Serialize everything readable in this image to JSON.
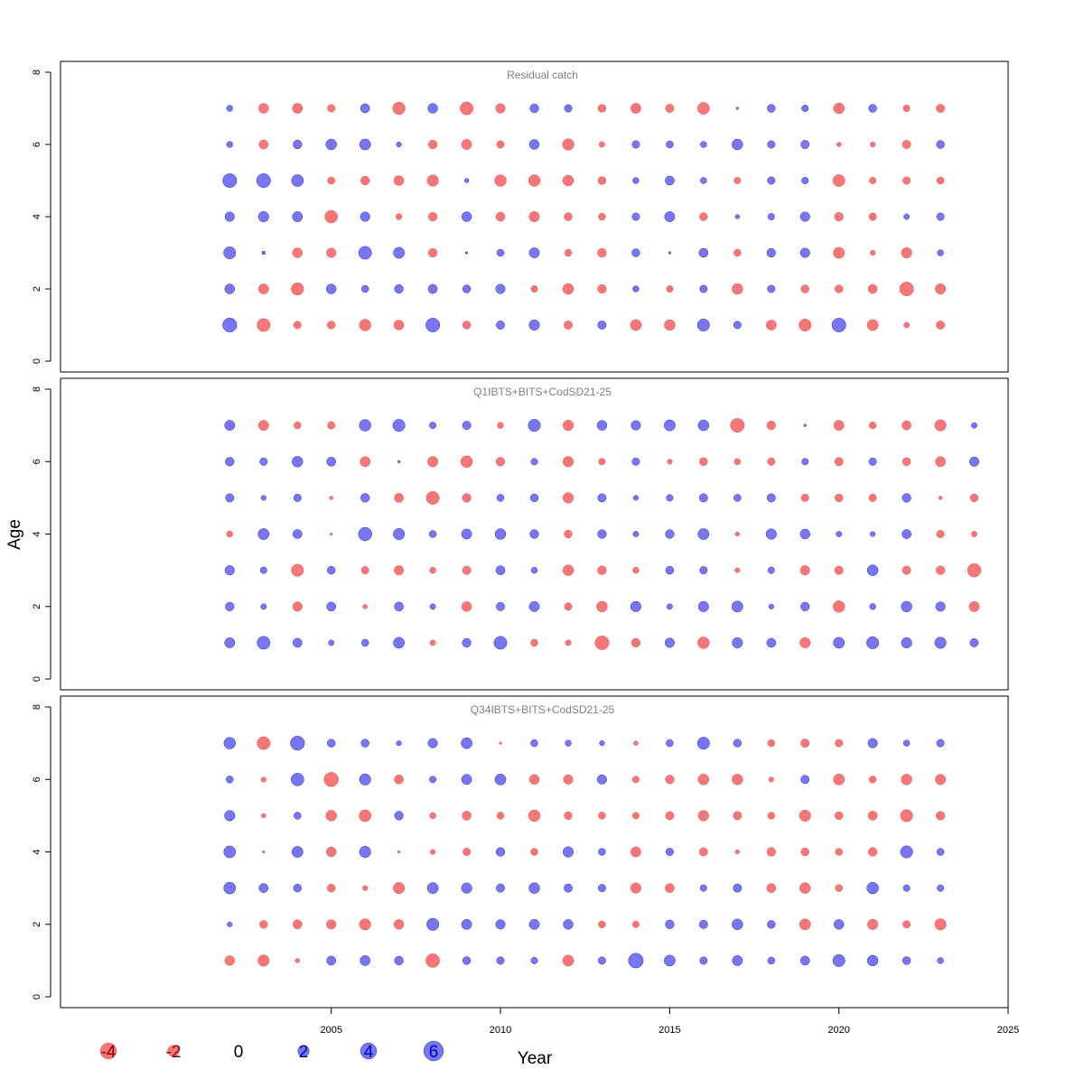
{
  "chart_data": {
    "type": "scatter",
    "style": "bubble",
    "xlabel": "Year",
    "ylabel": "Age",
    "xlim": [
      1997,
      2025
    ],
    "ylim": [
      0,
      8
    ],
    "x_ticks": [
      2005,
      2010,
      2015,
      2020,
      2025
    ],
    "y_ticks": [
      0,
      2,
      4,
      6,
      8
    ],
    "grid": false,
    "colors": {
      "positive": "#7777f5",
      "negative": "#f77777",
      "positive_text": "#0000b0",
      "negative_text": "#8b0000"
    },
    "legend": {
      "placement": "bottom",
      "items": [
        {
          "label": "-4",
          "value": -4
        },
        {
          "label": "-2",
          "value": -2
        },
        {
          "label": "0",
          "value": 0
        },
        {
          "label": "2",
          "value": 2
        },
        {
          "label": "4",
          "value": 4
        },
        {
          "label": "6",
          "value": 6
        }
      ]
    },
    "panels": [
      {
        "title": "Residual catch",
        "years": [
          2002,
          2003,
          2004,
          2005,
          2006,
          2007,
          2008,
          2009,
          2010,
          2011,
          2012,
          2013,
          2014,
          2015,
          2016,
          2017,
          2018,
          2019,
          2020,
          2021,
          2022,
          2023
        ],
        "ages": [
          7,
          6,
          5,
          4,
          3,
          2,
          1
        ],
        "residuals": [
          [
            0.6,
            -1.5,
            -1.6,
            -0.9,
            1.3,
            -2.4,
            1.5,
            -2.6,
            -1.4,
            1.2,
            0.9,
            -1.0,
            -1.6,
            -1.1,
            -2.2,
            0.1,
            1.0,
            0.7,
            -1.8,
            1.0,
            -0.7,
            -1.1
          ],
          [
            0.6,
            -1.3,
            1.2,
            1.8,
            1.9,
            0.4,
            -1.2,
            -1.6,
            -0.9,
            1.5,
            -2.0,
            -0.5,
            0.9,
            0.8,
            0.6,
            1.8,
            0.9,
            1.1,
            -0.3,
            -0.4,
            -1.1,
            1.0
          ],
          [
            3.0,
            3.0,
            2.2,
            -0.8,
            -1.2,
            -1.5,
            -2.0,
            0.3,
            -2.1,
            -2.1,
            -1.8,
            -1.0,
            0.6,
            1.3,
            0.6,
            -0.7,
            0.9,
            0.7,
            -2.2,
            -0.7,
            -0.9,
            -0.8
          ],
          [
            1.4,
            1.7,
            1.6,
            -2.5,
            1.4,
            -0.6,
            -1.2,
            1.5,
            -1.3,
            -1.7,
            -1.0,
            -0.8,
            0.9,
            1.6,
            -1.0,
            0.3,
            0.7,
            1.4,
            -1.2,
            -0.9,
            0.5,
            0.9
          ],
          [
            2.3,
            0.2,
            -1.5,
            -1.4,
            2.6,
            1.9,
            -1.2,
            0.1,
            0.8,
            1.6,
            -0.8,
            -1.2,
            1.0,
            0.1,
            1.3,
            -0.8,
            1.2,
            1.4,
            -1.9,
            -0.4,
            -1.7,
            0.6
          ],
          [
            1.5,
            -1.6,
            -2.4,
            1.5,
            0.8,
            1.2,
            1.3,
            1.0,
            1.4,
            -0.7,
            -1.8,
            -1.2,
            0.6,
            -0.7,
            0.9,
            -1.8,
            0.9,
            -1.0,
            -1.0,
            -1.3,
            -3.0,
            -1.7
          ],
          [
            3.1,
            -2.6,
            -0.9,
            -1.0,
            -2.1,
            -1.5,
            3.0,
            -1.0,
            1.1,
            1.7,
            -1.1,
            1.1,
            -1.9,
            -1.8,
            2.3,
            0.9,
            -1.6,
            -2.3,
            3.0,
            -1.9,
            -0.5,
            -1.1
          ]
        ]
      },
      {
        "title": "Q1IBTS+BITS+CodSD21-25",
        "years": [
          2002,
          2003,
          2004,
          2005,
          2006,
          2007,
          2008,
          2009,
          2010,
          2011,
          2012,
          2013,
          2014,
          2015,
          2016,
          2017,
          2018,
          2019,
          2020,
          2021,
          2022,
          2023,
          2024
        ],
        "ages": [
          7,
          6,
          5,
          4,
          3,
          2,
          1
        ],
        "residuals": [
          [
            1.6,
            -1.6,
            -0.8,
            -0.9,
            2.1,
            2.3,
            0.7,
            1.1,
            -0.6,
            2.3,
            -1.7,
            1.5,
            1.4,
            1.9,
            1.8,
            -3.0,
            -1.2,
            0.1,
            -1.6,
            -0.8,
            -1.3,
            -2.0,
            0.5
          ],
          [
            1.2,
            0.9,
            1.8,
            1.3,
            -1.6,
            0.1,
            -1.7,
            -2.1,
            -1.2,
            0.7,
            -1.7,
            -0.7,
            0.9,
            -0.4,
            -1.0,
            -0.6,
            -0.9,
            0.7,
            -1.1,
            0.9,
            -1.0,
            -1.6,
            1.4
          ],
          [
            1.1,
            0.4,
            0.9,
            -0.2,
            1.2,
            -1.3,
            -2.6,
            -1.2,
            0.8,
            1.0,
            -1.7,
            1.1,
            0.4,
            0.7,
            1.1,
            0.8,
            1.1,
            -0.9,
            -1.0,
            -0.9,
            1.2,
            -0.2,
            -1.0
          ],
          [
            -0.6,
            1.9,
            1.3,
            -0.1,
            2.8,
            2.0,
            0.8,
            1.6,
            1.8,
            1.2,
            -1.0,
            1.2,
            0.5,
            1.2,
            1.9,
            -0.3,
            1.7,
            1.5,
            0.5,
            0.4,
            1.3,
            -0.9,
            -0.5
          ],
          [
            1.4,
            0.7,
            -2.3,
            1.0,
            -0.9,
            -1.4,
            -0.6,
            -1.1,
            1.3,
            0.6,
            -1.8,
            -1.2,
            -0.6,
            1.0,
            0.9,
            -0.4,
            0.7,
            -1.4,
            -1.1,
            1.8,
            -1.1,
            -1.2,
            -2.8
          ],
          [
            1.2,
            0.5,
            -1.4,
            1.3,
            -0.3,
            1.3,
            0.5,
            -1.5,
            1.1,
            1.6,
            -0.9,
            -1.8,
            1.7,
            0.5,
            1.7,
            1.9,
            0.4,
            1.2,
            -2.1,
            0.6,
            1.8,
            1.4,
            -1.6
          ],
          [
            1.6,
            2.6,
            1.3,
            0.5,
            0.8,
            1.9,
            -0.5,
            1.2,
            2.6,
            -0.8,
            -0.5,
            -3.0,
            -1.2,
            1.4,
            -2.1,
            1.7,
            1.3,
            -1.7,
            1.9,
            2.3,
            1.7,
            2.0,
            1.1
          ]
        ]
      },
      {
        "title": "Q34IBTS+BITS+CodSD21-25",
        "years": [
          2002,
          2003,
          2004,
          2005,
          2006,
          2007,
          2008,
          2009,
          2010,
          2011,
          2012,
          2013,
          2014,
          2015,
          2016,
          2017,
          2018,
          2019,
          2020,
          2021,
          2022,
          2023
        ],
        "ages": [
          7,
          6,
          5,
          4,
          3,
          2,
          1
        ],
        "residuals": [
          [
            2.1,
            -2.6,
            3.1,
            1.0,
            1.0,
            0.4,
            1.4,
            1.9,
            -0.1,
            0.8,
            0.6,
            0.4,
            -0.3,
            0.8,
            2.3,
            1.0,
            -0.8,
            -1.1,
            -0.9,
            1.4,
            0.6,
            0.9
          ],
          [
            0.8,
            -0.4,
            2.5,
            -3.2,
            2.0,
            -1.3,
            0.7,
            1.6,
            1.9,
            -1.5,
            -1.4,
            1.4,
            -0.7,
            -1.2,
            -1.8,
            -1.8,
            -0.4,
            1.1,
            -1.9,
            -0.8,
            -1.8,
            -1.7
          ],
          [
            1.7,
            -0.3,
            0.8,
            -1.8,
            -2.2,
            1.2,
            -0.6,
            -1.3,
            -0.8,
            -2.1,
            -1.0,
            -0.8,
            -0.7,
            -1.1,
            -1.7,
            -1.1,
            -0.8,
            -2.0,
            -1.0,
            -1.3,
            -2.3,
            -1.2
          ],
          [
            2.2,
            -0.1,
            1.9,
            -1.5,
            2.0,
            -0.1,
            -0.4,
            -0.9,
            1.2,
            -0.8,
            1.7,
            0.8,
            -1.6,
            0.9,
            -1.1,
            -0.3,
            -1.2,
            -1.0,
            -0.8,
            -1.2,
            2.3,
            0.8
          ],
          [
            2.2,
            1.3,
            1.0,
            -1.0,
            -0.4,
            -2.0,
            1.9,
            1.7,
            1.1,
            1.8,
            1.1,
            0.9,
            -1.7,
            -1.3,
            0.7,
            1.1,
            -1.3,
            -1.8,
            -0.8,
            2.1,
            0.7,
            0.7
          ],
          [
            0.4,
            -1.0,
            -1.3,
            -1.4,
            -2.0,
            -1.5,
            2.3,
            1.6,
            1.4,
            1.6,
            1.5,
            -0.8,
            -0.7,
            1.2,
            1.1,
            1.8,
            1.0,
            -1.9,
            1.5,
            -1.7,
            -0.9,
            -2.0
          ],
          [
            -1.5,
            -2.0,
            -0.3,
            1.3,
            1.6,
            1.2,
            -2.9,
            1.0,
            0.9,
            0.7,
            -1.9,
            0.9,
            3.4,
            1.9,
            0.9,
            1.6,
            0.8,
            1.3,
            2.3,
            1.8,
            1.0,
            0.6
          ]
        ]
      }
    ]
  }
}
